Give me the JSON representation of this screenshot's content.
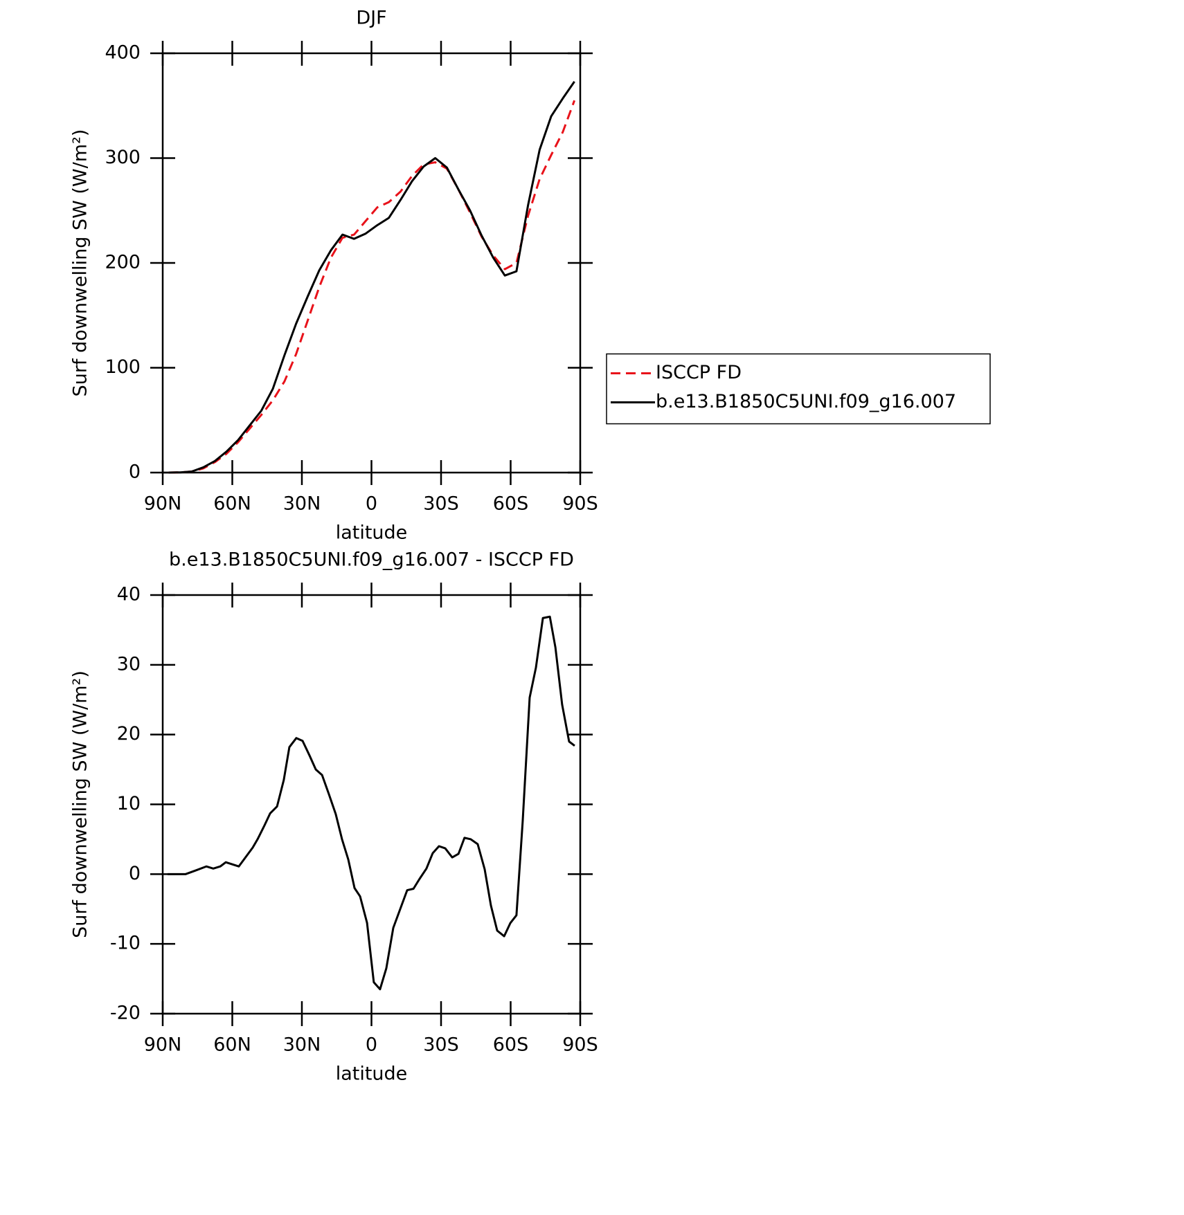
{
  "chart_data": [
    {
      "type": "line",
      "title": "DJF",
      "xlabel": "latitude",
      "ylabel": "Surf downwelling SW (W/m²)",
      "x": [
        87.5,
        82.5,
        77.5,
        72.5,
        67.5,
        62.5,
        57.5,
        52.5,
        47.5,
        42.5,
        37.5,
        32.5,
        27.5,
        22.5,
        17.5,
        12.5,
        7.5,
        2.5,
        -2.5,
        -7.5,
        -12.5,
        -17.5,
        -22.5,
        -27.5,
        -32.5,
        -37.5,
        -42.5,
        -47.5,
        -52.5,
        -57.5,
        -62.5,
        -67.5,
        -72.5,
        -77.5,
        -82.5,
        -87.5
      ],
      "series": [
        {
          "name": "ISCCP FD",
          "color": "#e8121a",
          "linestyle": "dashed",
          "values": [
            0,
            0.2,
            1,
            4,
            10,
            18,
            29,
            42,
            55,
            69,
            87,
            113,
            145,
            177,
            205,
            224,
            227,
            240,
            253,
            258,
            268,
            283,
            294,
            296,
            290,
            270,
            248,
            225,
            207,
            194,
            200,
            245,
            280,
            303,
            325,
            355
          ]
        },
        {
          "name": "b.e13.B1850C5UNI.f09_g16.007",
          "color": "#000000",
          "linestyle": "solid",
          "values": [
            0,
            0.2,
            1,
            5,
            11,
            20,
            31,
            45,
            59,
            80,
            112,
            142,
            168,
            193,
            212,
            227,
            223,
            228,
            236,
            243,
            260,
            278,
            292,
            300,
            291,
            270,
            250,
            226,
            205,
            188,
            192,
            255,
            308,
            340,
            357,
            373
          ]
        }
      ],
      "xlim": [
        90,
        -90
      ],
      "xticks": [
        {
          "value": 90,
          "label": "90N"
        },
        {
          "value": 60,
          "label": "60N"
        },
        {
          "value": 30,
          "label": "30N"
        },
        0,
        {
          "value": -30,
          "label": "30S"
        },
        {
          "value": -60,
          "label": "60S"
        },
        {
          "value": -90,
          "label": "90S"
        }
      ],
      "ylim": [
        0,
        400
      ],
      "yticks": [
        0,
        100,
        200,
        300,
        400
      ],
      "legend": "right"
    },
    {
      "type": "line",
      "title": "b.e13.B1850C5UNI.f09_g16.007 - ISCCP FD",
      "xlabel": "latitude",
      "ylabel": "Surf downwelling SW (W/m²)",
      "x": [
        87.9,
        80.1,
        76.0,
        71.2,
        68.2,
        65.2,
        62.8,
        57.2,
        51.2,
        49.1,
        46.1,
        43.7,
        40.7,
        37.8,
        35.4,
        32.4,
        29.7,
        26.7,
        24.0,
        21.3,
        18.4,
        15.4,
        12.7,
        10.0,
        7.3,
        4.9,
        1.9,
        -1.0,
        -3.7,
        -6.4,
        -9.4,
        -15.4,
        -18.1,
        -20.7,
        -23.7,
        -26.4,
        -29.1,
        -31.8,
        -34.8,
        -37.5,
        -40.1,
        -42.8,
        -45.8,
        -48.8,
        -51.5,
        -54.2,
        -57.2,
        -59.9,
        -62.5,
        -65.2,
        -68.2,
        -70.9,
        -73.9,
        -76.9,
        -79.3,
        -82.2,
        -85.2,
        -87.6
      ],
      "series": [
        {
          "name": "b.e13.B1850C5UNI.f09_g16.007 - ISCCP FD",
          "color": "#000000",
          "linestyle": "solid",
          "values": [
            0,
            0,
            0.5,
            1.1,
            0.8,
            1.1,
            1.7,
            1.1,
            3.8,
            5,
            7,
            8.7,
            9.7,
            13.5,
            18.2,
            19.5,
            19.1,
            17,
            15,
            14.2,
            11.5,
            8.6,
            5,
            2.1,
            -2,
            -3.2,
            -7,
            -15.5,
            -16.5,
            -13.5,
            -7.7,
            -2.3,
            -2.1,
            -0.7,
            0.8,
            3,
            4,
            3.7,
            2.4,
            2.9,
            5.2,
            5,
            4.3,
            0.7,
            -4.5,
            -8.1,
            -8.9,
            -7,
            -5.9,
            7.6,
            25.3,
            29.6,
            36.7,
            36.9,
            32.5,
            24.3,
            19,
            18.4
          ]
        }
      ],
      "xlim": [
        90,
        -90
      ],
      "xticks": [
        {
          "value": 90,
          "label": "90N"
        },
        {
          "value": 60,
          "label": "60N"
        },
        {
          "value": 30,
          "label": "30N"
        },
        0,
        {
          "value": -30,
          "label": "30S"
        },
        {
          "value": -60,
          "label": "60S"
        },
        {
          "value": -90,
          "label": "90S"
        }
      ],
      "ylim": [
        -20,
        40
      ],
      "yticks": [
        -20,
        -10,
        0,
        10,
        20,
        30,
        40
      ]
    }
  ]
}
